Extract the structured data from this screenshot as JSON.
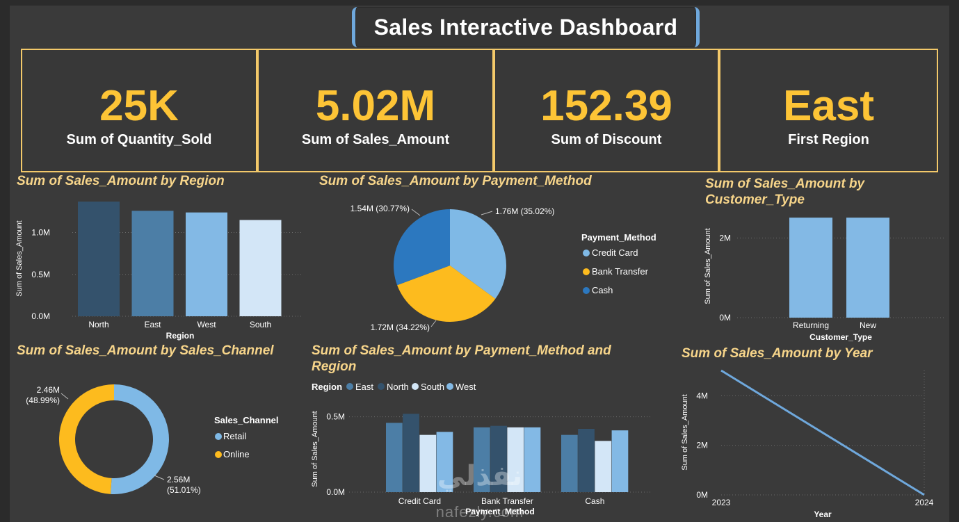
{
  "header": {
    "title": "Sales Interactive Dashboard"
  },
  "kpis": [
    {
      "value": "25K",
      "label": "Sum of Quantity_Sold"
    },
    {
      "value": "5.02M",
      "label": "Sum of Sales_Amount"
    },
    {
      "value": "152.39",
      "label": "Sum of Discount"
    },
    {
      "value": "East",
      "label": "First Region"
    }
  ],
  "colors": {
    "accent": "#fdc436",
    "title": "#f7d58a",
    "border": "#f3c96a",
    "light_blue": "#7fb9e6",
    "mid_blue": "#4a7fa8",
    "dark_blue": "#2e5677",
    "pale_blue": "#d3e6f7",
    "royal_blue": "#2c78bf"
  },
  "watermark": {
    "arabic": "نفذلي",
    "latin": "nafezly.com"
  },
  "chart_data": [
    {
      "id": "region",
      "type": "bar",
      "title": "Sum of Sales_Amount by Region",
      "xlabel": "Region",
      "ylabel": "Sum of Sales_Amount",
      "categories": [
        "North",
        "East",
        "West",
        "South"
      ],
      "values": [
        1.37,
        1.26,
        1.24,
        1.15
      ],
      "colors": [
        "#34526c",
        "#4c7ea6",
        "#83b9e5",
        "#d3e6f7"
      ],
      "ylim": [
        0,
        1.37
      ],
      "yticks": [
        0,
        0.5,
        1.0
      ],
      "ytick_labels": [
        "0.0M",
        "0.5M",
        "1.0M"
      ],
      "grid": true
    },
    {
      "id": "payment",
      "type": "pie",
      "title": "Sum of Sales_Amount by Payment_Method",
      "legend_title": "Payment_Method",
      "legend_position": "right",
      "slices": [
        {
          "name": "Credit Card",
          "value": 1.76,
          "pct": 35.02,
          "label": "1.76M (35.02%)",
          "color": "#7fb9e6"
        },
        {
          "name": "Bank Transfer",
          "value": 1.72,
          "pct": 34.22,
          "label": "1.72M (34.22%)",
          "color": "#fdbb1e"
        },
        {
          "name": "Cash",
          "value": 1.54,
          "pct": 30.77,
          "label": "1.54M (30.77%)",
          "color": "#2c78bf"
        }
      ]
    },
    {
      "id": "customer",
      "type": "bar",
      "title": "Sum of Sales_Amount by Customer_Type",
      "xlabel": "Customer_Type",
      "ylabel": "Sum of Sales_Amount",
      "categories": [
        "Returning",
        "New"
      ],
      "values": [
        2.51,
        2.51
      ],
      "color": "#83b9e5",
      "ylim": [
        0,
        3.0
      ],
      "yticks": [
        0,
        2
      ],
      "ytick_labels": [
        "0M",
        "2M"
      ],
      "grid": true
    },
    {
      "id": "channel",
      "type": "pie",
      "subtype": "donut",
      "title": "Sum of Sales_Amount by Sales_Channel",
      "legend_title": "Sales_Channel",
      "legend_position": "right",
      "slices": [
        {
          "name": "Retail",
          "value": 2.56,
          "pct": 51.01,
          "label_value": "2.56M",
          "label_pct": "(51.01%)",
          "color": "#7fb9e6"
        },
        {
          "name": "Online",
          "value": 2.46,
          "pct": 48.99,
          "label_value": "2.46M",
          "label_pct": "(48.99%)",
          "color": "#fdbb1e"
        }
      ]
    },
    {
      "id": "payment_region",
      "type": "bar",
      "subtype": "clustered",
      "title": "Sum of Sales_Amount by Payment_Method and Region",
      "legend_title": "Region",
      "legend_position": "top-left",
      "xlabel": "Payment_Method",
      "ylabel": "Sum of Sales_Amount",
      "categories": [
        "Credit Card",
        "Bank Transfer",
        "Cash"
      ],
      "series": [
        {
          "name": "East",
          "color": "#4c7ea6",
          "values": [
            0.46,
            0.43,
            0.38
          ]
        },
        {
          "name": "North",
          "color": "#34526c",
          "values": [
            0.52,
            0.44,
            0.42
          ]
        },
        {
          "name": "South",
          "color": "#d3e6f7",
          "values": [
            0.38,
            0.43,
            0.34
          ]
        },
        {
          "name": "West",
          "color": "#83b9e5",
          "values": [
            0.4,
            0.43,
            0.41
          ]
        }
      ],
      "ylim": [
        0,
        0.6
      ],
      "yticks": [
        0,
        0.5
      ],
      "ytick_labels": [
        "0.0M",
        "0.5M"
      ],
      "grid": true
    },
    {
      "id": "year",
      "type": "line",
      "title": "Sum of Sales_Amount by Year",
      "xlabel": "Year",
      "ylabel": "Sum of Sales_Amount",
      "x": [
        2023,
        2024
      ],
      "x_labels": [
        "2023",
        "2024"
      ],
      "y": [
        5.02,
        0
      ],
      "color": "#6fa8dc",
      "ylim": [
        0,
        5.02
      ],
      "yticks": [
        0,
        2,
        4
      ],
      "ytick_labels": [
        "0M",
        "2M",
        "4M"
      ],
      "grid": true
    }
  ]
}
